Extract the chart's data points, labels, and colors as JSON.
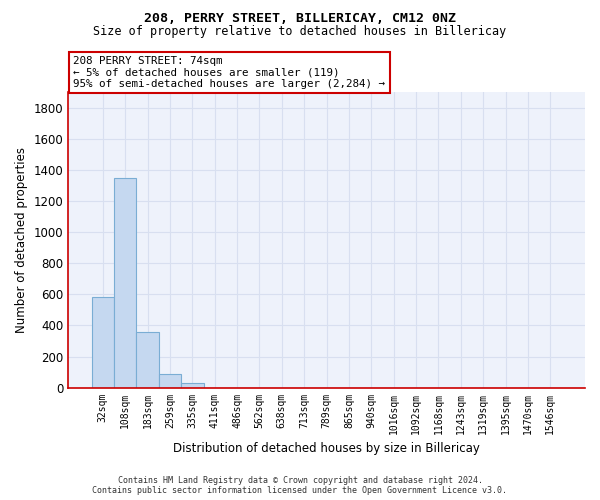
{
  "title_line1": "208, PERRY STREET, BILLERICAY, CM12 0NZ",
  "title_line2": "Size of property relative to detached houses in Billericay",
  "xlabel": "Distribution of detached houses by size in Billericay",
  "ylabel": "Number of detached properties",
  "bar_color": "#c5d8f0",
  "bar_edge_color": "#7aadd4",
  "categories": [
    "32sqm",
    "108sqm",
    "183sqm",
    "259sqm",
    "335sqm",
    "411sqm",
    "486sqm",
    "562sqm",
    "638sqm",
    "713sqm",
    "789sqm",
    "865sqm",
    "940sqm",
    "1016sqm",
    "1092sqm",
    "1168sqm",
    "1243sqm",
    "1319sqm",
    "1395sqm",
    "1470sqm",
    "1546sqm"
  ],
  "values": [
    580,
    1350,
    355,
    88,
    30,
    0,
    0,
    0,
    0,
    0,
    0,
    0,
    0,
    0,
    0,
    0,
    0,
    0,
    0,
    0,
    0
  ],
  "ylim": [
    0,
    1900
  ],
  "yticks": [
    0,
    200,
    400,
    600,
    800,
    1000,
    1200,
    1400,
    1600,
    1800
  ],
  "annotation_lines": [
    "208 PERRY STREET: 74sqm",
    "← 5% of detached houses are smaller (119)",
    "95% of semi-detached houses are larger (2,284) →"
  ],
  "vline_color": "#cc0000",
  "box_edge_color": "#cc0000",
  "spine_color": "#cc0000",
  "background_color": "#eef2fb",
  "grid_color": "#d8dff0",
  "footer_line1": "Contains HM Land Registry data © Crown copyright and database right 2024.",
  "footer_line2": "Contains public sector information licensed under the Open Government Licence v3.0."
}
